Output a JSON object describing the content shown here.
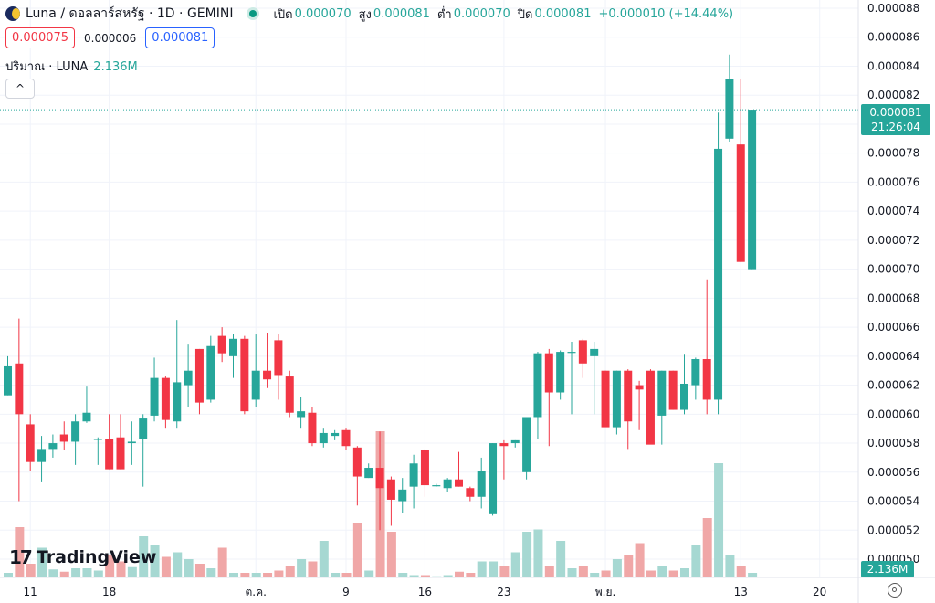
{
  "header": {
    "title": "Luna / ดอลลาร์สหรัฐ · 1D · GEMINI",
    "ohlc": [
      {
        "label": "เปิด",
        "value": "0.000070"
      },
      {
        "label": "สูง",
        "value": "0.000081"
      },
      {
        "label": "ต่ำ",
        "value": "0.000070"
      },
      {
        "label": "ปิด",
        "value": "0.000081"
      }
    ],
    "change": "+0.000010 (+14.44%)"
  },
  "quote": {
    "sell": "0.000075",
    "spread": "0.000006",
    "buy": "0.000081"
  },
  "volume_label": {
    "label": "ปริมาณ · LUNA",
    "value": "2.136M"
  },
  "collapse_icon": "chevron-up-icon",
  "branding": "TradingView",
  "price_label": {
    "price": "0.000081",
    "countdown": "21:26:04"
  },
  "volume_tag": "2.136M",
  "colors": {
    "up": "#26a69a",
    "down": "#f23645",
    "up_volume": "#a6d8d2",
    "down_volume": "#f0a7a7"
  },
  "chart_data": {
    "type": "candlestick",
    "y_axis": {
      "min": 4.9e-05,
      "max": 8.89e-05,
      "ticks": [
        "0.000088",
        "0.000086",
        "0.000084",
        "0.000082",
        "0.000080",
        "0.000078",
        "0.000076",
        "0.000074",
        "0.000072",
        "0.000070",
        "0.000068",
        "0.000066",
        "0.000064",
        "0.000062",
        "0.000060",
        "0.000058",
        "0.000056",
        "0.000054",
        "0.000052",
        "0.000050"
      ],
      "tick_values": [
        8.8e-05,
        8.6e-05,
        8.4e-05,
        8.2e-05,
        8e-05,
        7.8e-05,
        7.6e-05,
        7.4e-05,
        7.2e-05,
        7e-05,
        6.8e-05,
        6.6e-05,
        6.4e-05,
        6.2e-05,
        6e-05,
        5.8e-05,
        5.6e-05,
        5.4e-05,
        5.2e-05,
        5e-05
      ]
    },
    "x_axis": {
      "ticks": [
        {
          "label": "11",
          "index": 2
        },
        {
          "label": "18",
          "index": 9
        },
        {
          "label": "ต.ค.",
          "index": 22
        },
        {
          "label": "9",
          "index": 30
        },
        {
          "label": "16",
          "index": 37
        },
        {
          "label": "23",
          "index": 44
        },
        {
          "label": "พ.ย.",
          "index": 53
        },
        {
          "label": "13",
          "index": 65
        },
        {
          "label": "20",
          "index": 72
        }
      ]
    },
    "current_price": 8.1e-05,
    "candles": [
      {
        "o": 6.13e-05,
        "h": 6.4e-05,
        "l": 6.13e-05,
        "c": 6.33e-05,
        "v": 0.2
      },
      {
        "o": 6.35e-05,
        "h": 6.66e-05,
        "l": 5.4e-05,
        "c": 6e-05,
        "v": 2.2
      },
      {
        "o": 5.93e-05,
        "h": 6e-05,
        "l": 5.61e-05,
        "c": 5.67e-05,
        "v": 0.6
      },
      {
        "o": 5.67e-05,
        "h": 5.85e-05,
        "l": 5.53e-05,
        "c": 5.76e-05,
        "v": 1.3
      },
      {
        "o": 5.76e-05,
        "h": 5.86e-05,
        "l": 5.7e-05,
        "c": 5.8e-05,
        "v": 0.35
      },
      {
        "o": 5.86e-05,
        "h": 5.95e-05,
        "l": 5.75e-05,
        "c": 5.81e-05,
        "v": 0.25
      },
      {
        "o": 5.81e-05,
        "h": 6e-05,
        "l": 5.65e-05,
        "c": 5.95e-05,
        "v": 0.4
      },
      {
        "o": 5.95e-05,
        "h": 6.19e-05,
        "l": 5.94e-05,
        "c": 6.01e-05,
        "v": 0.4
      },
      {
        "o": 5.83e-05,
        "h": 5.84e-05,
        "l": 5.65e-05,
        "c": 5.83e-05,
        "v": 0.3
      },
      {
        "o": 5.83e-05,
        "h": 6e-05,
        "l": 5.62e-05,
        "c": 5.62e-05,
        "v": 1.0
      },
      {
        "o": 5.84e-05,
        "h": 6e-05,
        "l": 5.62e-05,
        "c": 5.62e-05,
        "v": 0.7
      },
      {
        "o": 5.8e-05,
        "h": 5.95e-05,
        "l": 5.65e-05,
        "c": 5.81e-05,
        "v": 0.45
      },
      {
        "o": 5.83e-05,
        "h": 6e-05,
        "l": 5.5e-05,
        "c": 5.97e-05,
        "v": 1.8
      },
      {
        "o": 5.99e-05,
        "h": 6.39e-05,
        "l": 5.95e-05,
        "c": 6.25e-05,
        "v": 1.4
      },
      {
        "o": 6.25e-05,
        "h": 6.26e-05,
        "l": 5.9e-05,
        "c": 5.96e-05,
        "v": 0.9
      },
      {
        "o": 5.95e-05,
        "h": 6.65e-05,
        "l": 5.9e-05,
        "c": 6.22e-05,
        "v": 1.1
      },
      {
        "o": 6.2e-05,
        "h": 6.48e-05,
        "l": 6.05e-05,
        "c": 6.3e-05,
        "v": 0.8
      },
      {
        "o": 6.45e-05,
        "h": 6.45e-05,
        "l": 6e-05,
        "c": 6.08e-05,
        "v": 0.6
      },
      {
        "o": 6.1e-05,
        "h": 6.54e-05,
        "l": 6.08e-05,
        "c": 6.47e-05,
        "v": 0.4
      },
      {
        "o": 6.54e-05,
        "h": 6.6e-05,
        "l": 6.36e-05,
        "c": 6.42e-05,
        "v": 1.3
      },
      {
        "o": 6.4e-05,
        "h": 6.55e-05,
        "l": 6.25e-05,
        "c": 6.52e-05,
        "v": 0.2
      },
      {
        "o": 6.52e-05,
        "h": 6.54e-05,
        "l": 6e-05,
        "c": 6.02e-05,
        "v": 0.2
      },
      {
        "o": 6.1e-05,
        "h": 6.55e-05,
        "l": 6.05e-05,
        "c": 6.3e-05,
        "v": 0.2
      },
      {
        "o": 6.3e-05,
        "h": 6.56e-05,
        "l": 6.18e-05,
        "c": 6.24e-05,
        "v": 0.2
      },
      {
        "o": 6.51e-05,
        "h": 6.55e-05,
        "l": 6.1e-05,
        "c": 6.27e-05,
        "v": 0.3
      },
      {
        "o": 6.26e-05,
        "h": 6.3e-05,
        "l": 5.98e-05,
        "c": 6.01e-05,
        "v": 0.5
      },
      {
        "o": 5.98e-05,
        "h": 6.12e-05,
        "l": 5.9e-05,
        "c": 6.02e-05,
        "v": 0.8
      },
      {
        "o": 6.01e-05,
        "h": 6.05e-05,
        "l": 5.78e-05,
        "c": 5.8e-05,
        "v": 0.7
      },
      {
        "o": 5.8e-05,
        "h": 5.9e-05,
        "l": 5.77e-05,
        "c": 5.87e-05,
        "v": 1.6
      },
      {
        "o": 5.85e-05,
        "h": 5.89e-05,
        "l": 5.82e-05,
        "c": 5.87e-05,
        "v": 0.2
      },
      {
        "o": 5.89e-05,
        "h": 5.9e-05,
        "l": 5.75e-05,
        "c": 5.78e-05,
        "v": 0.2
      },
      {
        "o": 5.77e-05,
        "h": 5.78e-05,
        "l": 5.37e-05,
        "c": 5.57e-05,
        "v": 2.4
      },
      {
        "o": 5.56e-05,
        "h": 5.66e-05,
        "l": 5.56e-05,
        "c": 5.63e-05,
        "v": 0.3
      },
      {
        "o": 5.63e-05,
        "h": 5.88e-05,
        "l": 5.2e-05,
        "c": 5.49e-05,
        "v": 6.4
      },
      {
        "o": 5.55e-05,
        "h": 5.57e-05,
        "l": 5.23e-05,
        "c": 5.41e-05,
        "v": 2.0
      },
      {
        "o": 5.4e-05,
        "h": 5.56e-05,
        "l": 5.32e-05,
        "c": 5.48e-05,
        "v": 0.2
      },
      {
        "o": 5.5e-05,
        "h": 5.72e-05,
        "l": 5.35e-05,
        "c": 5.66e-05,
        "v": 0.1
      },
      {
        "o": 5.75e-05,
        "h": 5.76e-05,
        "l": 5.43e-05,
        "c": 5.51e-05,
        "v": 0.1
      },
      {
        "o": 5.51e-05,
        "h": 5.52e-05,
        "l": 5.5e-05,
        "c": 5.51e-05,
        "v": 0.05
      },
      {
        "o": 5.49e-05,
        "h": 5.56e-05,
        "l": 5.46e-05,
        "c": 5.55e-05,
        "v": 0.1
      },
      {
        "o": 5.55e-05,
        "h": 5.74e-05,
        "l": 5.5e-05,
        "c": 5.5e-05,
        "v": 0.25
      },
      {
        "o": 5.49e-05,
        "h": 5.5e-05,
        "l": 5.4e-05,
        "c": 5.43e-05,
        "v": 0.2
      },
      {
        "o": 5.43e-05,
        "h": 5.7e-05,
        "l": 5.35e-05,
        "c": 5.61e-05,
        "v": 0.7
      },
      {
        "o": 5.31e-05,
        "h": 5.8e-05,
        "l": 5.3e-05,
        "c": 5.8e-05,
        "v": 0.7
      },
      {
        "o": 5.8e-05,
        "h": 5.82e-05,
        "l": 5.55e-05,
        "c": 5.78e-05,
        "v": 0.5
      },
      {
        "o": 5.8e-05,
        "h": 5.82e-05,
        "l": 5.77e-05,
        "c": 5.82e-05,
        "v": 1.1
      },
      {
        "o": 5.6e-05,
        "h": 5.98e-05,
        "l": 5.55e-05,
        "c": 5.98e-05,
        "v": 2.0
      },
      {
        "o": 5.98e-05,
        "h": 6.43e-05,
        "l": 5.83e-05,
        "c": 6.42e-05,
        "v": 2.1
      },
      {
        "o": 6.42e-05,
        "h": 6.45e-05,
        "l": 5.78e-05,
        "c": 6.15e-05,
        "v": 0.5
      },
      {
        "o": 6.15e-05,
        "h": 6.44e-05,
        "l": 6.1e-05,
        "c": 6.43e-05,
        "v": 1.6
      },
      {
        "o": 6.43e-05,
        "h": 6.5e-05,
        "l": 6e-05,
        "c": 6.43e-05,
        "v": 0.4
      },
      {
        "o": 6.51e-05,
        "h": 6.52e-05,
        "l": 6.25e-05,
        "c": 6.35e-05,
        "v": 0.5
      },
      {
        "o": 6.4e-05,
        "h": 6.5e-05,
        "l": 6e-05,
        "c": 6.45e-05,
        "v": 0.2
      },
      {
        "o": 6.3e-05,
        "h": 6.3e-05,
        "l": 5.92e-05,
        "c": 5.91e-05,
        "v": 0.3
      },
      {
        "o": 5.91e-05,
        "h": 6.3e-05,
        "l": 5.86e-05,
        "c": 6.3e-05,
        "v": 0.8
      },
      {
        "o": 6.3e-05,
        "h": 6.31e-05,
        "l": 5.76e-05,
        "c": 5.95e-05,
        "v": 1.0
      },
      {
        "o": 6.2e-05,
        "h": 6.23e-05,
        "l": 5.89e-05,
        "c": 6.17e-05,
        "v": 1.5
      },
      {
        "o": 6.3e-05,
        "h": 6.31e-05,
        "l": 5.8e-05,
        "c": 5.79e-05,
        "v": 0.3
      },
      {
        "o": 5.99e-05,
        "h": 6.3e-05,
        "l": 5.79e-05,
        "c": 6.3e-05,
        "v": 0.5
      },
      {
        "o": 6.3e-05,
        "h": 6.3e-05,
        "l": 6.03e-05,
        "c": 6.03e-05,
        "v": 0.3
      },
      {
        "o": 6.03e-05,
        "h": 6.41e-05,
        "l": 6e-05,
        "c": 6.21e-05,
        "v": 0.4
      },
      {
        "o": 6.2e-05,
        "h": 6.39e-05,
        "l": 6.1e-05,
        "c": 6.38e-05,
        "v": 1.4
      },
      {
        "o": 6.38e-05,
        "h": 6.93e-05,
        "l": 6e-05,
        "c": 6.1e-05,
        "v": 2.6
      },
      {
        "o": 6.1e-05,
        "h": 8.08e-05,
        "l": 6e-05,
        "c": 7.83e-05,
        "v": 5.0
      },
      {
        "o": 7.9e-05,
        "h": 8.48e-05,
        "l": 7.88e-05,
        "c": 8.31e-05,
        "v": 1.0
      },
      {
        "o": 7.86e-05,
        "h": 8.31e-05,
        "l": 7.05e-05,
        "c": 7.05e-05,
        "v": 0.5
      },
      {
        "o": 7e-05,
        "h": 8.1e-05,
        "l": 7e-05,
        "c": 8.1e-05,
        "v": 0.2
      }
    ]
  }
}
